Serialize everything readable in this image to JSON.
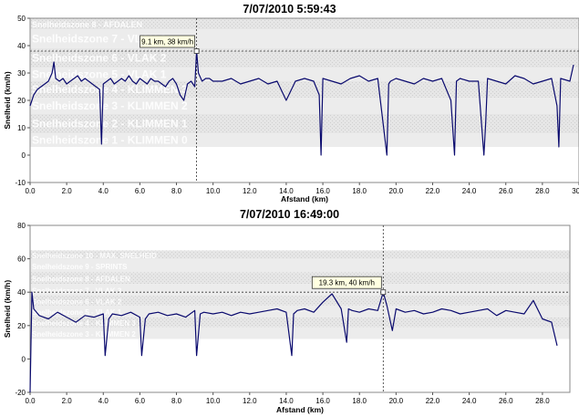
{
  "charts": [
    {
      "title": "7/07/2010 5:59:43",
      "xlabel": "Afstand (km)",
      "ylabel": "Snelheid (km/h)"
    },
    {
      "title": "7/07/2010 16:49:00",
      "xlabel": "Afstand (km)",
      "ylabel": "Snelheid (km/h)"
    }
  ],
  "chart_data": [
    {
      "type": "line",
      "title": "7/07/2010 5:59:43",
      "xlabel": "Afstand (km)",
      "ylabel": "Snelheid (km/h)",
      "xlim": [
        0,
        30
      ],
      "ylim": [
        -10,
        50
      ],
      "xticks": [
        "0.0",
        "2.0",
        "4.0",
        "6.0",
        "8.0",
        "10.0",
        "12.0",
        "14.0",
        "16.0",
        "18.0",
        "20.0",
        "22.0",
        "24.0",
        "26.0",
        "28.0",
        "30.0"
      ],
      "yticks": [
        "-10",
        "0",
        "10",
        "20",
        "30",
        "40",
        "50"
      ],
      "grid": false,
      "line_color": "#0a0a6e",
      "zones": [
        {
          "label": "Snelheidszone 8 - AFDALEN",
          "from": 46,
          "to": 50
        },
        {
          "label": "Snelheidszone 7 - VLAK 3",
          "from": 39,
          "to": 46
        },
        {
          "label": "Snelheidszone 6 - VLAK 2",
          "from": 32,
          "to": 39
        },
        {
          "label": "Snelheidszone 5 - VLAK 1",
          "from": 27,
          "to": 32
        },
        {
          "label": "Snelheidszone 4 - KLIMMEN 3",
          "from": 21,
          "to": 27
        },
        {
          "label": "Snelheidszone 3 - KLIMMEN 2",
          "from": 15,
          "to": 21
        },
        {
          "label": "Snelheidszone 2 - KLIMMEN 1",
          "from": 8,
          "to": 15
        },
        {
          "label": "Snelheidszone 1 - KLIMMEN 0",
          "from": 3,
          "to": 8
        }
      ],
      "cursor": {
        "x": 9.1,
        "y": 38,
        "label": "9.1 km, 38 km/h"
      },
      "series": [
        {
          "x": [
            0,
            0.2,
            0.4,
            0.6,
            0.8,
            1.0,
            1.2,
            1.3,
            1.4,
            1.6,
            1.8,
            2.0,
            2.2,
            2.4,
            2.6,
            2.8,
            3.0,
            3.2,
            3.4,
            3.6,
            3.8,
            3.9,
            4.0,
            4.2,
            4.4,
            4.6,
            4.8,
            5.0,
            5.2,
            5.4,
            5.6,
            5.8,
            6.0,
            6.2,
            6.4,
            6.6,
            6.8,
            7.0,
            7.2,
            7.4,
            7.6,
            7.8,
            8.0,
            8.2,
            8.4,
            8.6,
            8.8,
            9.0,
            9.1,
            9.2,
            9.4,
            9.6,
            9.8,
            10.0,
            10.5,
            11.0,
            11.5,
            12.0,
            12.5,
            13.0,
            13.5,
            14.0,
            14.5,
            15.0,
            15.5,
            15.8,
            15.9,
            16.0,
            16.5,
            17.0,
            17.5,
            18.0,
            18.5,
            19.0,
            19.5,
            19.6,
            19.7,
            20.0,
            20.5,
            21.0,
            21.5,
            22.0,
            22.5,
            23.0,
            23.2,
            23.3,
            23.5,
            24.0,
            24.5,
            24.8,
            24.9,
            25.0,
            25.5,
            26.0,
            26.5,
            27.0,
            27.5,
            28.0,
            28.5,
            28.8,
            28.9,
            29.0,
            29.5,
            29.7
          ],
          "y": [
            18,
            22,
            24,
            25,
            26,
            27,
            30,
            34,
            28,
            27,
            28,
            26,
            27,
            28,
            29,
            27,
            28,
            27,
            26,
            25,
            24,
            4,
            26,
            27,
            28,
            26,
            27,
            28,
            27,
            29,
            27,
            26,
            28,
            27,
            26,
            28,
            27,
            27,
            26,
            25,
            27,
            28,
            26,
            22,
            20,
            26,
            27,
            25,
            38,
            30,
            27,
            28,
            28,
            27,
            27,
            28,
            26,
            27,
            28,
            26,
            27,
            20,
            27,
            28,
            27,
            22,
            0,
            28,
            27,
            26,
            28,
            29,
            27,
            28,
            0,
            26,
            27,
            28,
            27,
            26,
            28,
            27,
            28,
            20,
            0,
            27,
            28,
            27,
            27,
            0,
            12,
            28,
            27,
            26,
            29,
            28,
            26,
            27,
            28,
            18,
            3,
            28,
            27,
            33
          ]
        }
      ]
    },
    {
      "type": "line",
      "title": "7/07/2010 16:49:00",
      "xlabel": "Afstand (km)",
      "ylabel": "Snelheid (km/h)",
      "xlim": [
        0,
        29.5
      ],
      "ylim": [
        -20,
        80
      ],
      "xticks": [
        "0.0",
        "2.0",
        "4.0",
        "6.0",
        "8.0",
        "10.0",
        "12.0",
        "14.0",
        "16.0",
        "18.0",
        "20.0",
        "22.0",
        "24.0",
        "26.0",
        "28.0"
      ],
      "yticks": [
        "-20",
        "0",
        "20",
        "40",
        "60",
        "80"
      ],
      "grid": false,
      "line_color": "#0a0a6e",
      "zones": [
        {
          "label": "Snelheidszone 10 - MAX. SNELHEID",
          "from": 60,
          "to": 65
        },
        {
          "label": "Snelheidszone 9 - SPRINTS",
          "from": 52,
          "to": 60
        },
        {
          "label": "Snelheidszone 8 - AFDALEN",
          "from": 45,
          "to": 52
        },
        {
          "label": "Snelheidszone 7 - VLAK 3",
          "from": 38,
          "to": 45
        },
        {
          "label": "Snelheidszone 6 - VLAK 2",
          "from": 32,
          "to": 38
        },
        {
          "label": "Snelheidszone 5 - VLAK 1",
          "from": 25,
          "to": 32
        },
        {
          "label": "Snelheidszone 4 - KLIMMEN 3",
          "from": 19,
          "to": 25
        },
        {
          "label": "Snelheidszone 3 - KLIMMEN 2",
          "from": 12,
          "to": 19
        }
      ],
      "cursor": {
        "x": 19.3,
        "y": 40,
        "label": "19.3 km, 40 km/h"
      },
      "series": [
        {
          "x": [
            0,
            0.1,
            0.2,
            0.5,
            1.0,
            1.5,
            2.0,
            2.5,
            3.0,
            3.5,
            4.0,
            4.1,
            4.3,
            4.5,
            5.0,
            5.5,
            6.0,
            6.1,
            6.3,
            6.5,
            7.0,
            7.5,
            8.0,
            8.5,
            9.0,
            9.1,
            9.3,
            9.5,
            10.0,
            10.5,
            11.0,
            11.5,
            12.0,
            12.5,
            13.0,
            13.5,
            14.0,
            14.3,
            14.4,
            14.6,
            15.0,
            15.5,
            16.0,
            16.5,
            17.0,
            17.3,
            17.4,
            17.6,
            18.0,
            18.5,
            19.0,
            19.3,
            19.5,
            19.8,
            20.0,
            20.5,
            21.0,
            21.5,
            22.0,
            22.5,
            23.0,
            23.5,
            24.0,
            24.5,
            25.0,
            25.5,
            26.0,
            26.5,
            27.0,
            27.5,
            28.0,
            28.5,
            28.8
          ],
          "y": [
            -20,
            40,
            30,
            26,
            24,
            28,
            25,
            22,
            26,
            25,
            27,
            2,
            24,
            27,
            26,
            28,
            25,
            2,
            24,
            27,
            28,
            26,
            27,
            25,
            29,
            2,
            27,
            28,
            27,
            28,
            26,
            28,
            27,
            28,
            29,
            30,
            28,
            2,
            27,
            29,
            30,
            28,
            34,
            39,
            30,
            10,
            30,
            29,
            28,
            30,
            29,
            40,
            32,
            17,
            30,
            28,
            29,
            27,
            28,
            30,
            29,
            27,
            28,
            29,
            30,
            26,
            29,
            28,
            27,
            35,
            24,
            22,
            8
          ]
        }
      ]
    }
  ]
}
